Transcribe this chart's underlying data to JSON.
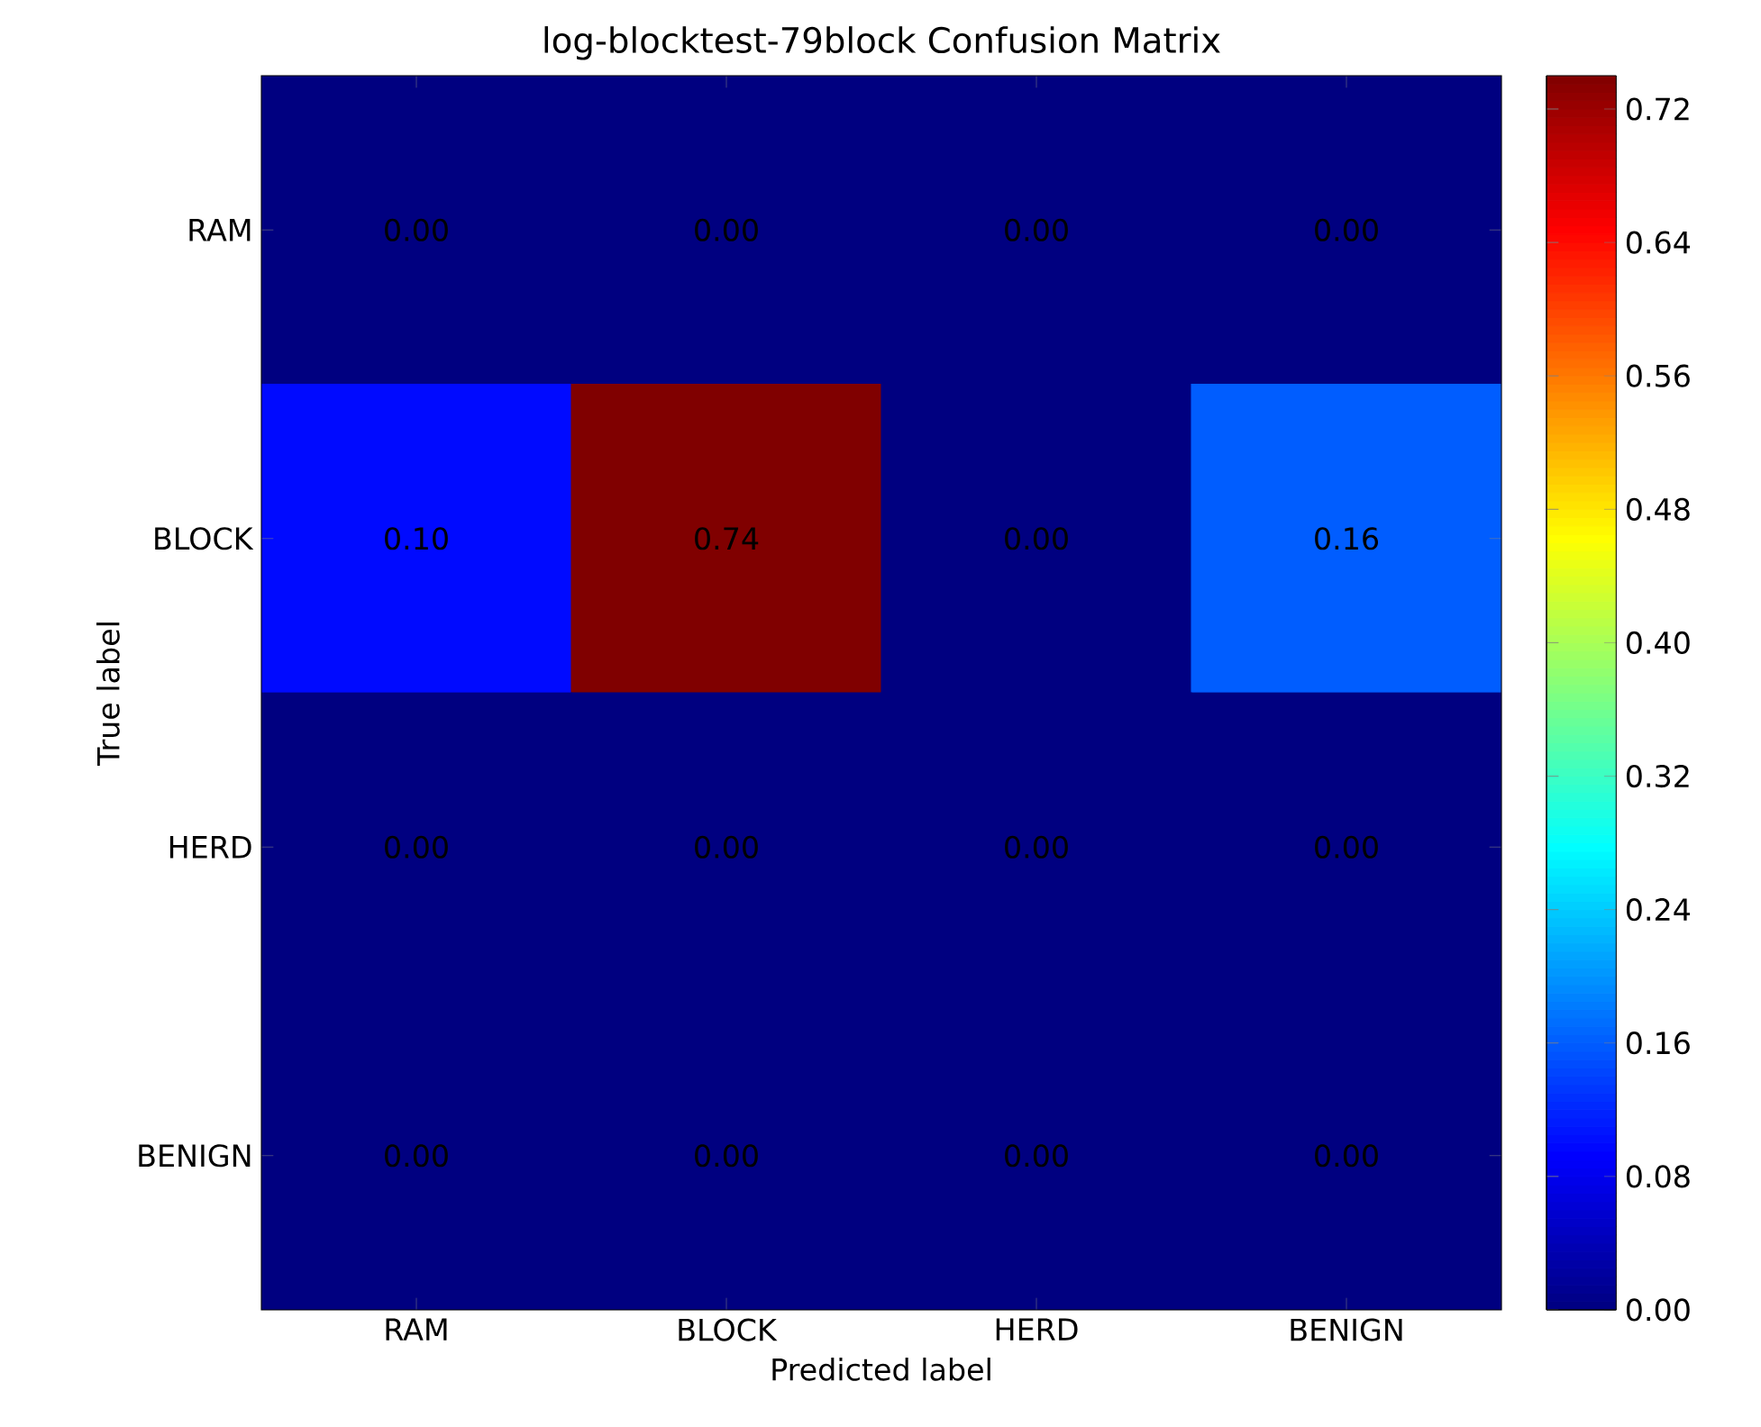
{
  "chart_data": {
    "type": "heatmap",
    "title": "log-blocktest-79block Confusion Matrix",
    "xlabel": "Predicted label",
    "ylabel": "True label",
    "categories": [
      "RAM",
      "BLOCK",
      "HERD",
      "BENIGN"
    ],
    "y_categories": [
      "RAM",
      "BLOCK",
      "HERD",
      "BENIGN"
    ],
    "cells": [
      [
        0.0,
        0.0,
        0.0,
        0.0
      ],
      [
        0.1,
        0.74,
        0.0,
        0.16
      ],
      [
        0.0,
        0.0,
        0.0,
        0.0
      ],
      [
        0.0,
        0.0,
        0.0,
        0.0
      ]
    ],
    "cell_labels": [
      [
        "0.00",
        "0.00",
        "0.00",
        "0.00"
      ],
      [
        "0.10",
        "0.74",
        "0.00",
        "0.16"
      ],
      [
        "0.00",
        "0.00",
        "0.00",
        "0.00"
      ],
      [
        "0.00",
        "0.00",
        "0.00",
        "0.00"
      ]
    ],
    "clim": [
      0,
      0.74
    ],
    "cticks": [
      {
        "value": 0,
        "label": "0.00"
      },
      {
        "value": 0.08,
        "label": "0.08"
      },
      {
        "value": 0.16,
        "label": "0.16"
      },
      {
        "value": 0.24,
        "label": "0.24"
      },
      {
        "value": 0.32,
        "label": "0.32"
      },
      {
        "value": 0.4,
        "label": "0.40"
      },
      {
        "value": 0.48,
        "label": "0.48"
      },
      {
        "value": 0.56,
        "label": "0.56"
      },
      {
        "value": 0.64,
        "label": "0.64"
      },
      {
        "value": 0.72,
        "label": "0.72"
      }
    ]
  }
}
